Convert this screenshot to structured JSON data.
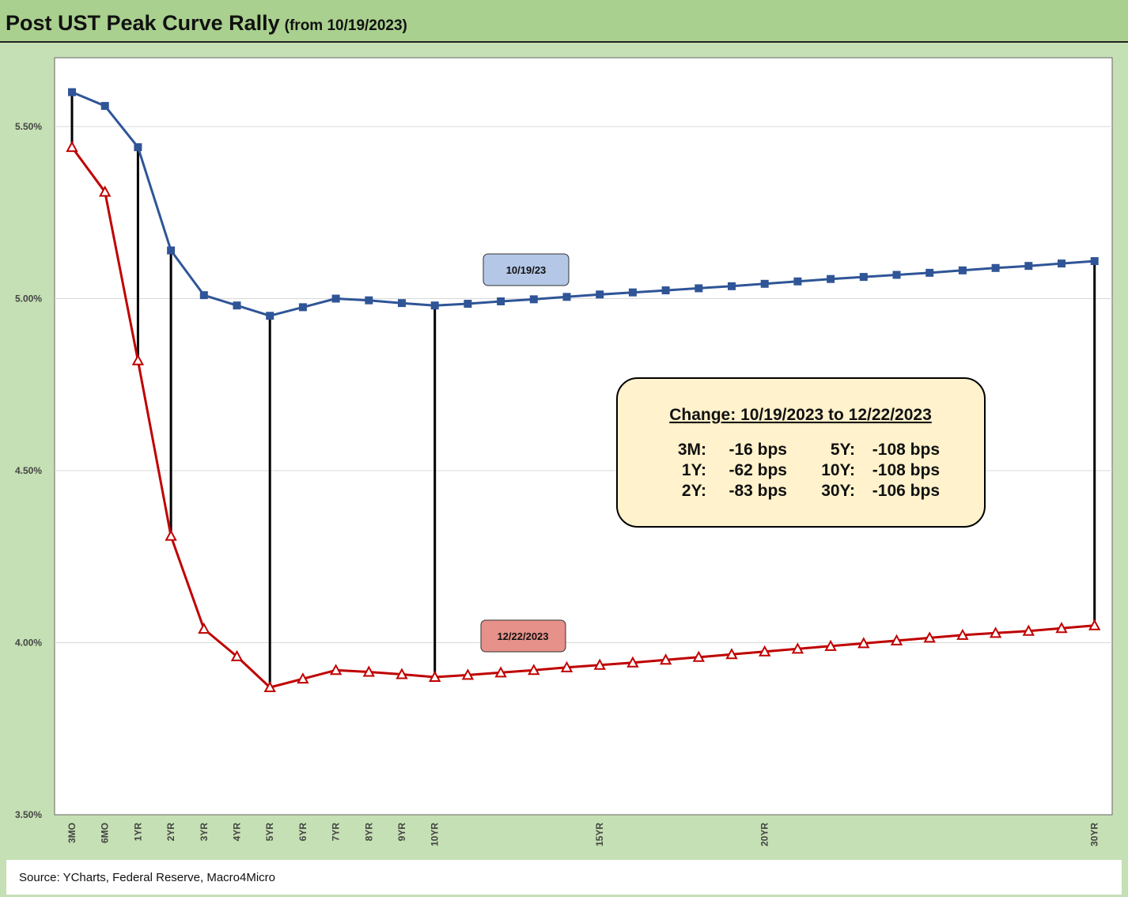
{
  "header": {
    "title": "Post UST Peak Curve Rally",
    "subtitle": "(from 10/19/2023)"
  },
  "footer": {
    "source": "Source: YCharts, Federal Reserve, Macro4Micro"
  },
  "chart_data": {
    "type": "line",
    "x": [
      "3MO",
      "6MO",
      "1YR",
      "2YR",
      "3YR",
      "4YR",
      "5YR",
      "6YR",
      "7YR",
      "8YR",
      "9YR",
      "10YR",
      "11YR",
      "12YR",
      "13YR",
      "14YR",
      "15YR",
      "16YR",
      "17YR",
      "18YR",
      "19YR",
      "20YR",
      "21YR",
      "22YR",
      "23YR",
      "24YR",
      "25YR",
      "26YR",
      "27YR",
      "28YR",
      "29YR",
      "30YR"
    ],
    "x_tick_labels_shown": [
      "3MO",
      "6MO",
      "1YR",
      "2YR",
      "3YR",
      "4YR",
      "5YR",
      "6YR",
      "7YR",
      "8YR",
      "9YR",
      "10YR",
      "15YR",
      "20YR",
      "30YR"
    ],
    "ylim": [
      3.5,
      5.7
    ],
    "y_ticks": [
      3.5,
      4.0,
      4.5,
      5.0,
      5.5
    ],
    "y_tick_labels": [
      "3.50%",
      "4.00%",
      "4.50%",
      "5.00%",
      "5.50%"
    ],
    "grid": true,
    "series": [
      {
        "name": "10/19/23",
        "color": "#2f5597",
        "marker": "square",
        "values": [
          5.6,
          5.56,
          5.44,
          5.14,
          5.01,
          4.98,
          4.95,
          4.975,
          5.0,
          4.995,
          4.987,
          4.98,
          4.985,
          4.992,
          4.998,
          5.005,
          5.012,
          5.018,
          5.024,
          5.03,
          5.036,
          5.043,
          5.05,
          5.057,
          5.063,
          5.069,
          5.075,
          5.082,
          5.089,
          5.095,
          5.102,
          5.109
        ]
      },
      {
        "name": "12/22/2023",
        "color": "#c00000",
        "marker": "triangle",
        "values": [
          5.44,
          5.31,
          4.82,
          4.31,
          4.04,
          3.96,
          3.87,
          3.895,
          3.92,
          3.915,
          3.908,
          3.9,
          3.906,
          3.913,
          3.92,
          3.928,
          3.935,
          3.942,
          3.95,
          3.958,
          3.966,
          3.974,
          3.982,
          3.99,
          3.998,
          4.006,
          4.014,
          4.022,
          4.028,
          4.034,
          4.042,
          4.05
        ]
      }
    ],
    "change_connectors": [
      "3MO",
      "1YR",
      "2YR",
      "5YR",
      "10YR",
      "30YR"
    ],
    "series_tags": {
      "blue": {
        "text": "10/19/23",
        "fill": "#b4c7e7"
      },
      "red": {
        "text": "12/22/2023",
        "fill": "#e6918a"
      }
    },
    "annotation": {
      "title": "Change: 10/19/2023 to 12/22/2023",
      "fill": "#fff2cc",
      "rows": [
        {
          "l1": "3M:",
          "v1": "-16 bps",
          "l2": "5Y:",
          "v2": "-108 bps"
        },
        {
          "l1": "1Y:",
          "v1": "-62 bps",
          "l2": "10Y:",
          "v2": "-108 bps"
        },
        {
          "l1": "2Y:",
          "v1": "-83 bps",
          "l2": "30Y:",
          "v2": "-106 bps"
        }
      ]
    }
  }
}
